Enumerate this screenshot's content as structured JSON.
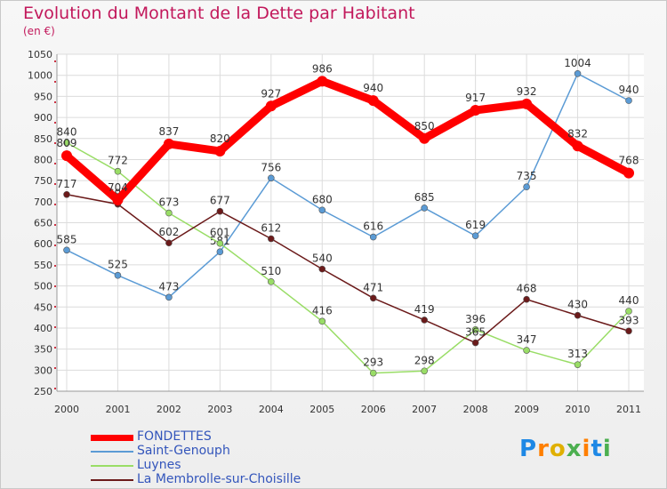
{
  "title": "Evolution du Montant de la Dette par Habitant",
  "unit": "(en €)",
  "brand": "Proxiti",
  "chart_data": {
    "type": "line",
    "x": [
      "2000",
      "2001",
      "2002",
      "2003",
      "2004",
      "2005",
      "2006",
      "2007",
      "2008",
      "2009",
      "2010",
      "2011"
    ],
    "ylim": [
      250,
      1050
    ],
    "yticks": [
      250,
      300,
      350,
      400,
      450,
      500,
      550,
      600,
      650,
      700,
      750,
      800,
      850,
      900,
      950,
      1000,
      1050
    ],
    "grid": true,
    "legend_position": "bottom-left",
    "series": [
      {
        "name": "FONDETTES",
        "color": "#ff0000",
        "values": [
          809,
          704,
          837,
          820,
          927,
          986,
          940,
          850,
          917,
          932,
          832,
          768
        ]
      },
      {
        "name": "Saint-Genouph",
        "color": "#5b9bd5",
        "values": [
          585,
          525,
          473,
          581,
          756,
          680,
          616,
          685,
          619,
          735,
          1004,
          940
        ]
      },
      {
        "name": "Luynes",
        "color": "#99dd66",
        "values": [
          840,
          772,
          673,
          601,
          510,
          416,
          293,
          298,
          396,
          347,
          313,
          440
        ]
      },
      {
        "name": "La Membrolle-sur-Choisille",
        "color": "#6b1a1a",
        "values": [
          717,
          694,
          602,
          677,
          612,
          540,
          471,
          419,
          365,
          468,
          430,
          393
        ]
      }
    ]
  }
}
